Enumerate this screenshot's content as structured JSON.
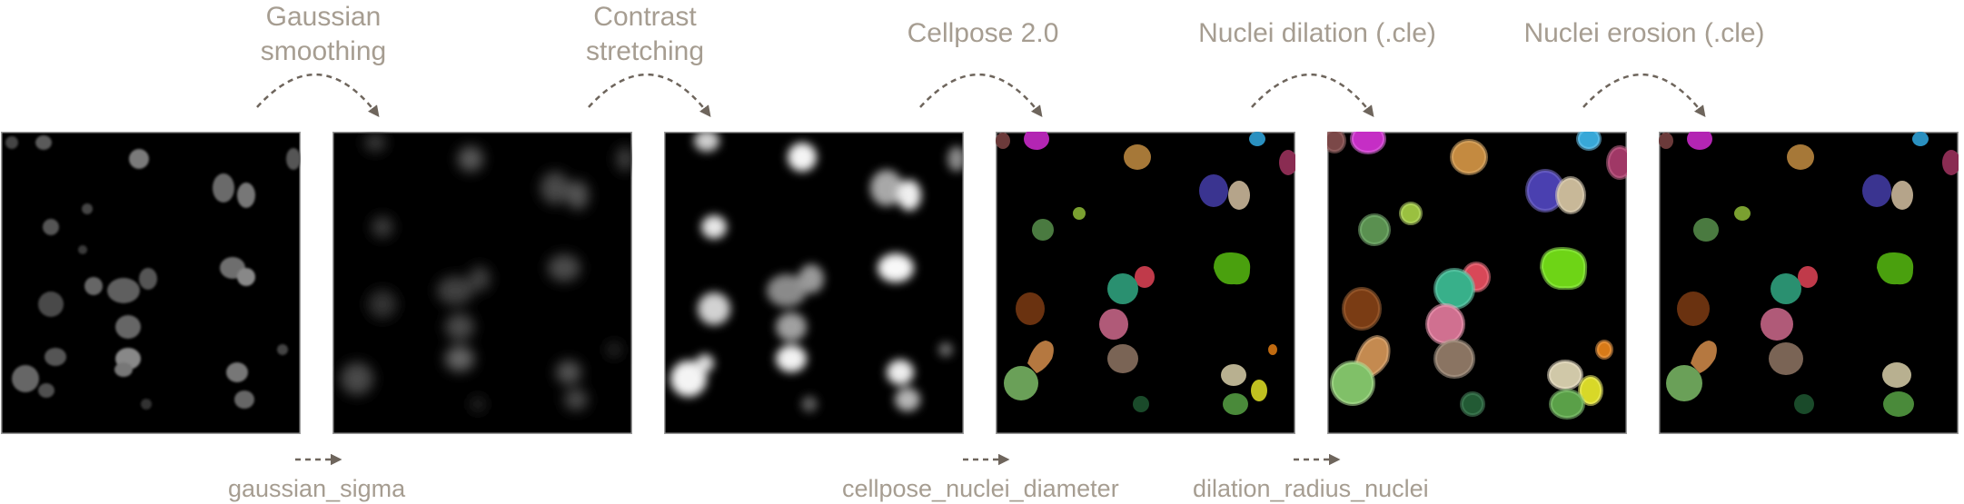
{
  "steps": [
    {
      "title": "Gaussian smoothing",
      "title_lines": [
        "Gaussian",
        "smoothing"
      ],
      "parameter": "gaussian_sigma"
    },
    {
      "title": "Contrast stretching",
      "title_lines": [
        "Contrast",
        "stretching"
      ],
      "parameter": ""
    },
    {
      "title": "Cellpose 2.0",
      "title_lines": [
        "Cellpose 2.0"
      ],
      "parameter": "cellpose_nuclei_diameter"
    },
    {
      "title": "Nuclei dilation (.cle)",
      "title_lines": [
        "Nuclei dilation (.cle)"
      ],
      "parameter": "dilation_radius_nuclei"
    },
    {
      "title": "Nuclei erosion (.cle)",
      "title_lines": [
        "Nuclei erosion (.cle)"
      ],
      "parameter": ""
    }
  ],
  "panels": [
    {
      "name": "raw-nuclei-image",
      "kind": "grayscale"
    },
    {
      "name": "gaussian-smoothed-image",
      "kind": "grayscale"
    },
    {
      "name": "contrast-stretched-image",
      "kind": "grayscale"
    },
    {
      "name": "cellpose-label-image",
      "kind": "labels"
    },
    {
      "name": "dilated-label-image",
      "kind": "labels"
    },
    {
      "name": "eroded-label-image",
      "kind": "labels"
    }
  ],
  "colors": {
    "text": "#a69d91",
    "arrow": "#6e655c",
    "panel_border": "#9a9a9a",
    "panel_background": "#000000"
  }
}
